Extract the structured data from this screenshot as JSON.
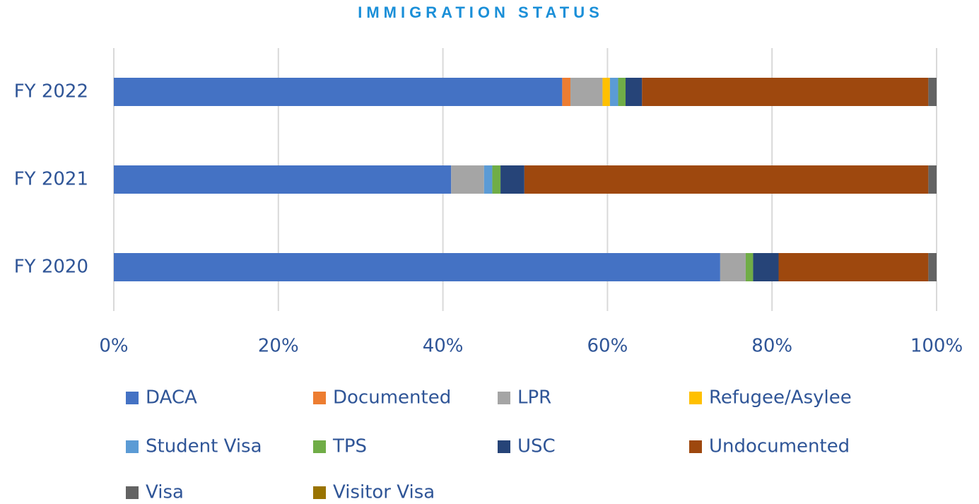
{
  "chart_data": {
    "type": "stacked-bar-horizontal",
    "title": "IMMIGRATION STATUS",
    "categories": [
      "FY 2022",
      "FY 2021",
      "FY 2020"
    ],
    "series": [
      {
        "name": "DACA",
        "color": "#4472c4",
        "values": [
          54.5,
          41.0,
          73.7
        ]
      },
      {
        "name": "Documented",
        "color": "#ed7d31",
        "values": [
          1.0,
          0,
          0
        ]
      },
      {
        "name": "LPR",
        "color": "#a5a5a5",
        "values": [
          3.9,
          4.0,
          3.1
        ]
      },
      {
        "name": "Refugee/Asylee",
        "color": "#ffc000",
        "values": [
          0.9,
          0,
          0
        ]
      },
      {
        "name": "Student Visa",
        "color": "#5b9bd5",
        "values": [
          1.0,
          1.0,
          0
        ]
      },
      {
        "name": "TPS",
        "color": "#70ad47",
        "values": [
          0.9,
          1.0,
          0.9
        ]
      },
      {
        "name": "USC",
        "color": "#264478",
        "values": [
          2.0,
          2.9,
          3.1
        ]
      },
      {
        "name": "Undocumented",
        "color": "#9e480e",
        "values": [
          34.8,
          49.1,
          18.2
        ]
      },
      {
        "name": "Visa",
        "color": "#636363",
        "values": [
          1.0,
          1.0,
          1.0
        ]
      },
      {
        "name": "Visitor Visa",
        "color": "#997300",
        "values": [
          0,
          0,
          0
        ]
      }
    ],
    "xlim": [
      0,
      100
    ],
    "xticks": [
      {
        "value": 0,
        "label": "0%"
      },
      {
        "value": 20,
        "label": "20%"
      },
      {
        "value": 40,
        "label": "40%"
      },
      {
        "value": 60,
        "label": "60%"
      },
      {
        "value": 80,
        "label": "80%"
      },
      {
        "value": 100,
        "label": "100%"
      }
    ],
    "grid": true,
    "legend": "bottom"
  }
}
